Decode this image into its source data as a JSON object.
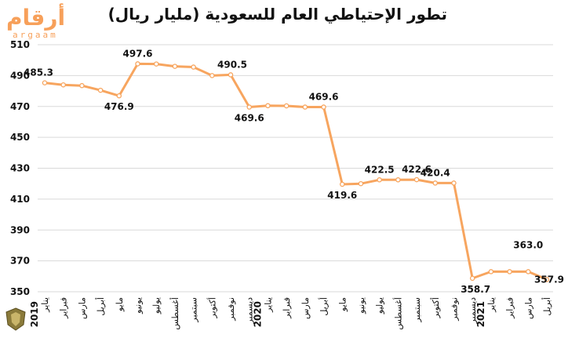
{
  "title": "تطور الإحتياطي العام للسعودية (مليار ريال)",
  "logo": {
    "main": "أرقام",
    "sub": "argaam"
  },
  "colors": {
    "line": "#f7a55f",
    "grid": "#d9d9d9",
    "text": "#111111",
    "logo": "#f7a05a"
  },
  "chart_data": {
    "type": "line",
    "title": "تطور الإحتياطي العام للسعودية (مليار ريال)",
    "xlabel": "",
    "ylabel": "",
    "ylim": [
      350,
      510
    ],
    "yticks": [
      350,
      370,
      390,
      410,
      430,
      450,
      470,
      490,
      510
    ],
    "grid": true,
    "legend": "none",
    "categories": [
      "يناير",
      "فبراير",
      "مارس",
      "أبريل",
      "مايو",
      "يونيو",
      "يوليو",
      "أغسطس",
      "سبتمبر",
      "أكتوبر",
      "نوفمبر",
      "ديسمبر",
      "يناير",
      "فبراير",
      "مارس",
      "أبريل",
      "مايو",
      "يونيو",
      "يوليو",
      "أغسطس",
      "سبتمبر",
      "أكتوبر",
      "نوفمبر",
      "ديسمبر",
      "يناير",
      "فبراير",
      "مارس",
      "أبريل"
    ],
    "year_labels": [
      {
        "text": "2019",
        "index": 0
      },
      {
        "text": "2020",
        "index": 12
      },
      {
        "text": "2021",
        "index": 24
      }
    ],
    "series": [
      {
        "values": [
          485.3,
          484.0,
          483.5,
          480.5,
          476.9,
          497.6,
          497.5,
          496.0,
          495.5,
          490.0,
          490.5,
          469.6,
          470.5,
          470.4,
          469.6,
          469.6,
          419.6,
          420.0,
          422.5,
          422.5,
          422.6,
          420.4,
          420.4,
          358.7,
          363.0,
          363.0,
          363.0,
          357.9
        ]
      }
    ],
    "data_labels": [
      {
        "index": 0,
        "text": "485.3"
      },
      {
        "index": 4,
        "text": "476.9"
      },
      {
        "index": 5,
        "text": "497.6"
      },
      {
        "index": 10,
        "text": "490.5"
      },
      {
        "index": 11,
        "text": "469.6"
      },
      {
        "index": 15,
        "text": "469.6"
      },
      {
        "index": 16,
        "text": "419.6"
      },
      {
        "index": 18,
        "text": "422.5"
      },
      {
        "index": 20,
        "text": "422.6"
      },
      {
        "index": 21,
        "text": "420.4"
      },
      {
        "index": 23,
        "text": "358.7"
      },
      {
        "index": 26,
        "text": "363.0"
      },
      {
        "index": 27,
        "text": "357.9"
      }
    ]
  }
}
